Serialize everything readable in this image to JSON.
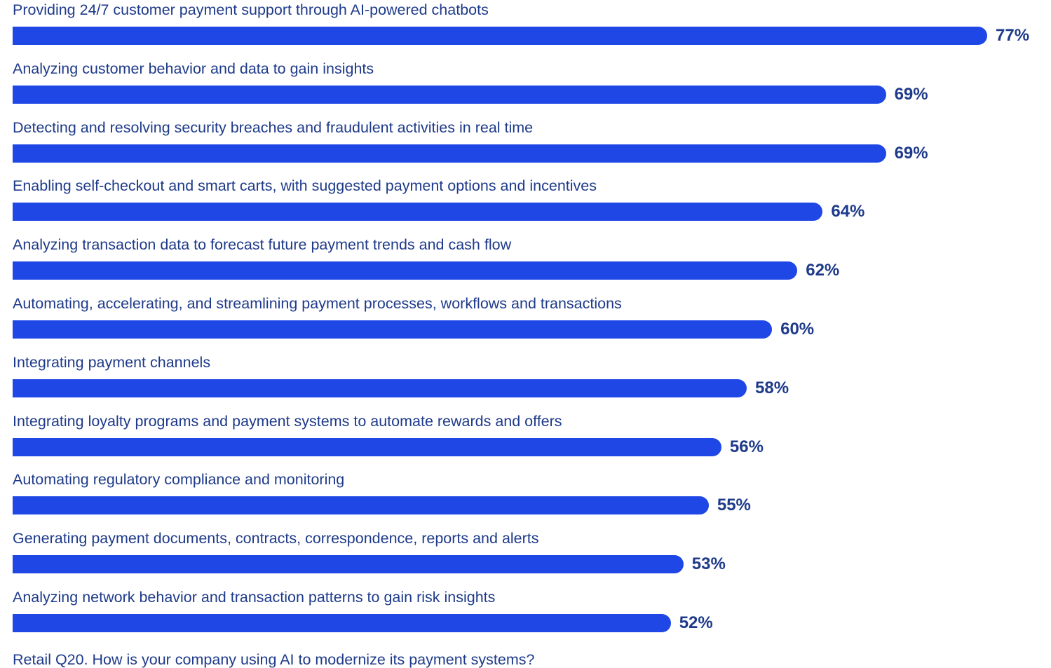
{
  "chart_data": {
    "type": "bar",
    "orientation": "horizontal",
    "categories": [
      "Providing 24/7 customer payment support through AI-powered chatbots",
      "Analyzing customer behavior and data to gain insights",
      "Detecting and resolving security breaches and fraudulent activities in real time",
      "Enabling self-checkout and smart carts, with suggested payment options and incentives",
      "Analyzing transaction data to forecast future payment trends and cash flow",
      "Automating, accelerating, and streamlining payment processes, workflows and transactions",
      "Integrating payment channels",
      "Integrating loyalty programs and payment systems to automate rewards and offers",
      "Automating regulatory compliance and monitoring",
      "Generating payment documents, contracts, correspondence, reports and alerts",
      "Analyzing network behavior and transaction patterns to gain risk insights"
    ],
    "values": [
      77,
      69,
      69,
      64,
      62,
      60,
      58,
      56,
      55,
      53,
      52
    ],
    "value_labels": [
      "77%",
      "69%",
      "69%",
      "64%",
      "62%",
      "60%",
      "58%",
      "56%",
      "55%",
      "53%",
      "52%"
    ],
    "unit": "%",
    "footnote": "Retail Q20. How is your company using AI to modernize its payment systems?",
    "bar_color": "#1f47e6",
    "text_color": "#1e3a8a",
    "grid": false,
    "legend": false
  }
}
